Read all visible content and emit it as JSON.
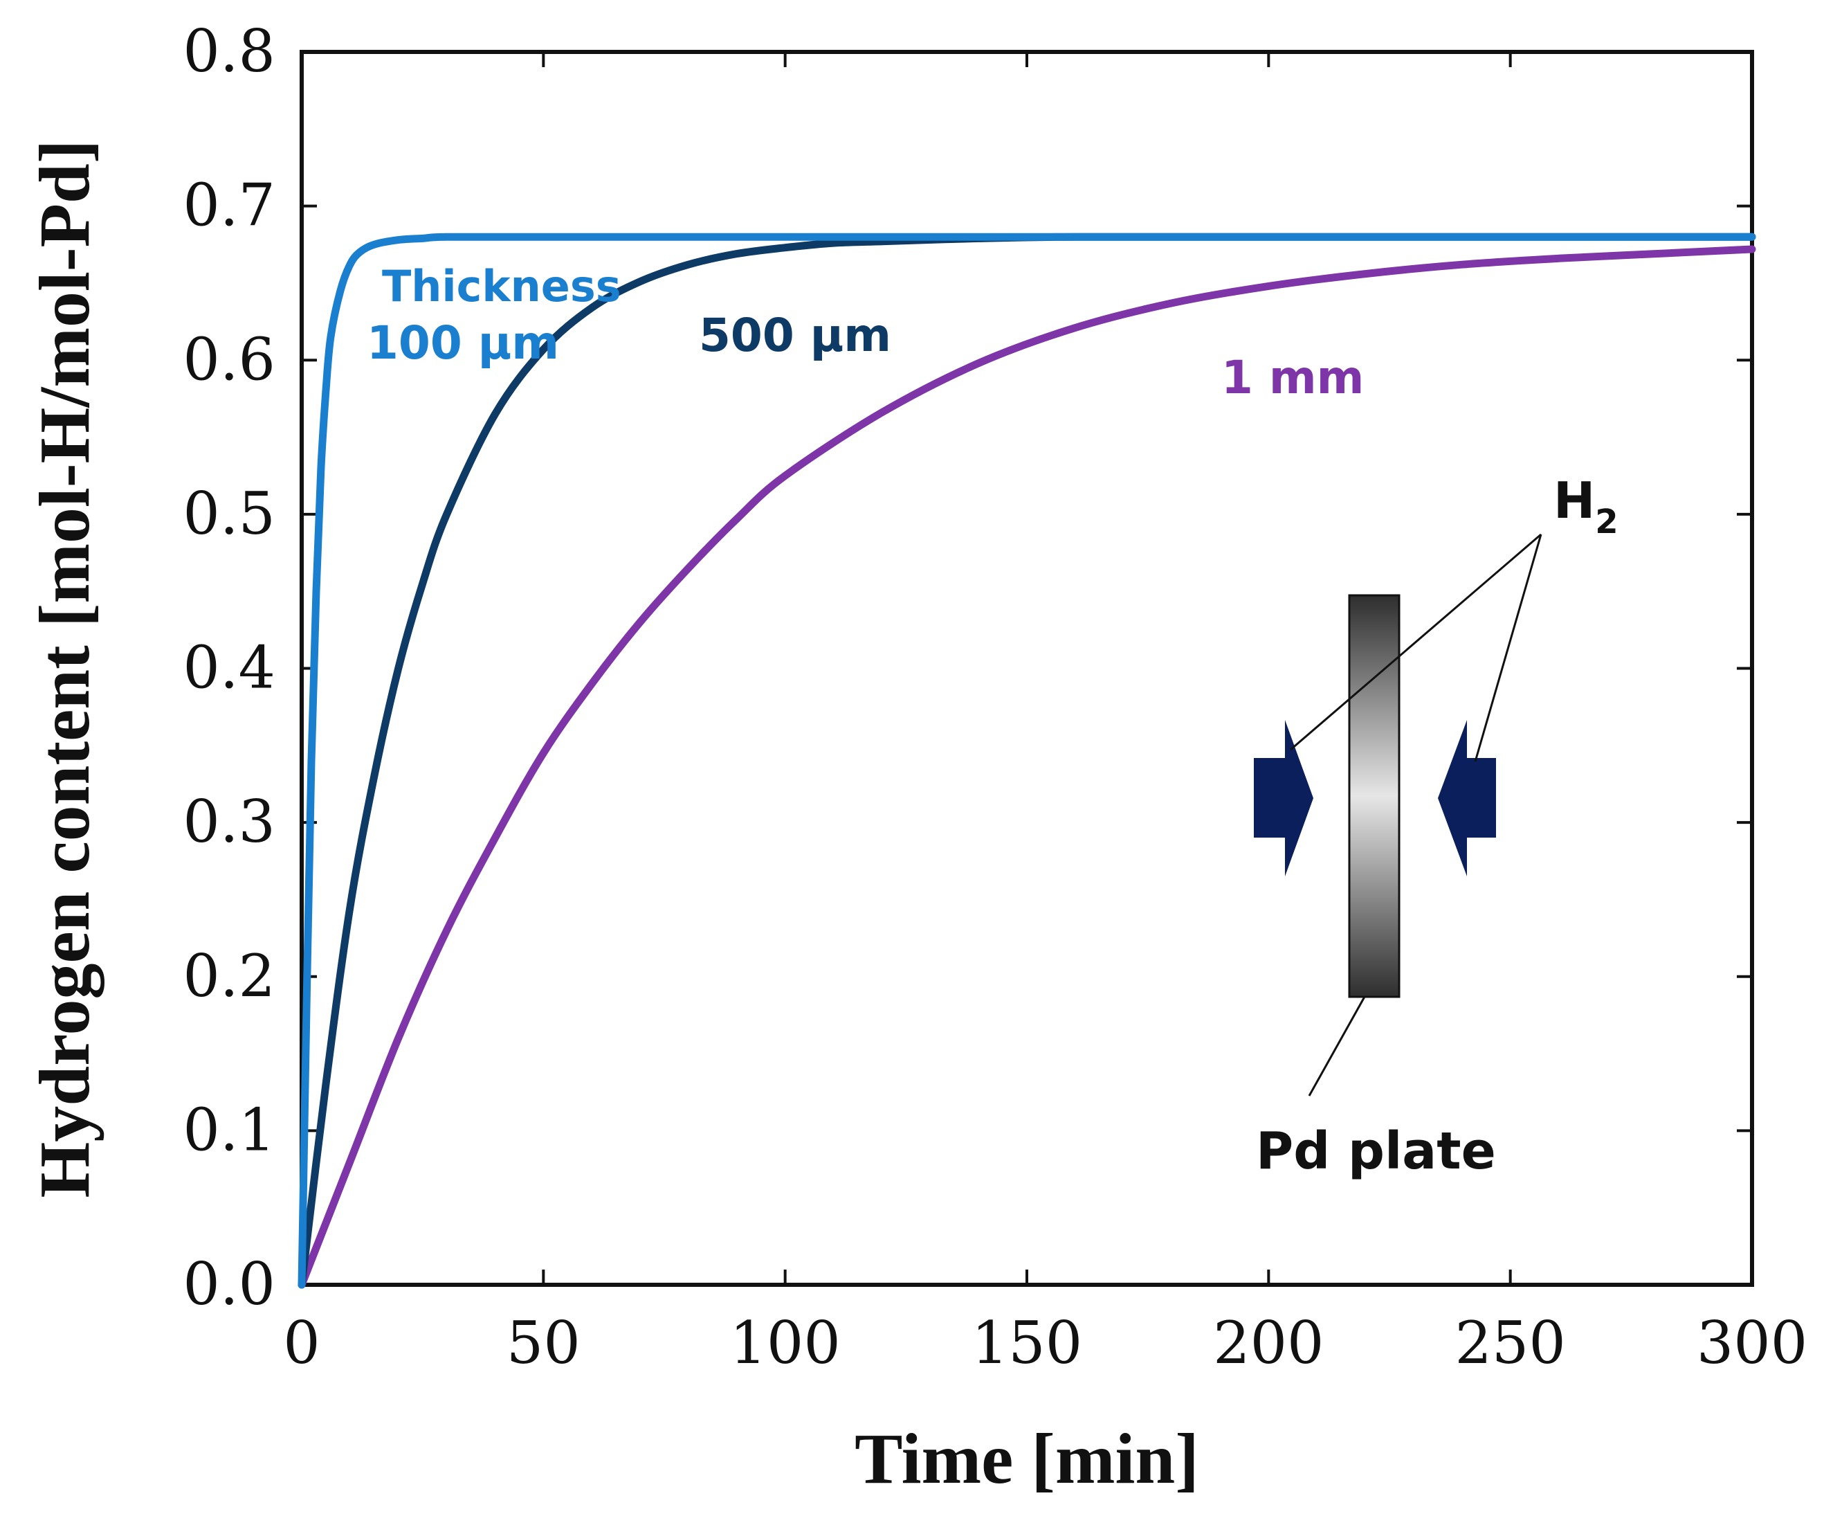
{
  "chart_data": {
    "type": "line",
    "title": "",
    "xlabel": "Time [min]",
    "ylabel": "Hydrogen content [mol-H/mol-Pd]",
    "xlim": [
      0,
      300
    ],
    "ylim": [
      0.0,
      0.8
    ],
    "xticks": [
      0,
      50,
      100,
      150,
      200,
      250,
      300
    ],
    "xtick_labels": [
      "0",
      "50",
      "100",
      "150",
      "200",
      "250",
      "300"
    ],
    "yticks": [
      0.0,
      0.1,
      0.2,
      0.3,
      0.4,
      0.5,
      0.6,
      0.7,
      0.8
    ],
    "ytick_labels": [
      "0.0",
      "0.1",
      "0.2",
      "0.3",
      "0.4",
      "0.5",
      "0.6",
      "0.7",
      "0.8"
    ],
    "grid": false,
    "series": [
      {
        "name": "100 µm",
        "color": "#1a7fcf",
        "x": [
          0,
          1,
          2,
          3,
          4,
          5,
          6,
          8,
          10,
          12,
          15,
          20,
          25,
          30,
          50,
          100,
          150,
          200,
          250,
          300
        ],
        "y": [
          0.0,
          0.18,
          0.34,
          0.45,
          0.53,
          0.58,
          0.615,
          0.645,
          0.662,
          0.67,
          0.675,
          0.678,
          0.679,
          0.68,
          0.68,
          0.68,
          0.68,
          0.68,
          0.68,
          0.68
        ]
      },
      {
        "name": "500 µm",
        "color": "#0e3a66",
        "x": [
          0,
          5,
          10,
          15,
          20,
          25,
          30,
          40,
          50,
          60,
          70,
          80,
          90,
          100,
          110,
          120,
          140,
          160,
          200,
          250,
          300
        ],
        "y": [
          0.0,
          0.13,
          0.245,
          0.33,
          0.4,
          0.455,
          0.5,
          0.565,
          0.607,
          0.634,
          0.651,
          0.662,
          0.669,
          0.673,
          0.676,
          0.677,
          0.679,
          0.68,
          0.68,
          0.68,
          0.68
        ]
      },
      {
        "name": "1 mm",
        "color": "#7d35a8",
        "x": [
          0,
          10,
          20,
          30,
          40,
          50,
          60,
          70,
          80,
          90,
          100,
          120,
          140,
          160,
          180,
          200,
          220,
          240,
          260,
          280,
          300
        ],
        "y": [
          0.0,
          0.08,
          0.16,
          0.23,
          0.29,
          0.345,
          0.39,
          0.43,
          0.465,
          0.497,
          0.525,
          0.566,
          0.598,
          0.621,
          0.637,
          0.648,
          0.656,
          0.662,
          0.666,
          0.669,
          0.672
        ]
      }
    ],
    "annotations": {
      "thickness_word": "Thickness",
      "thickness_100": "100 µm",
      "thickness_500": "500 µm",
      "thickness_1mm": "1 mm",
      "h2_letter": "H",
      "h2_subscript": "2",
      "pd_plate": "Pd plate"
    }
  },
  "colors": {
    "c100": "#1a7fcf",
    "c500": "#0e3a66",
    "c1mm": "#7d35a8",
    "arrow": "#0a1f5c",
    "axis": "#111111"
  }
}
